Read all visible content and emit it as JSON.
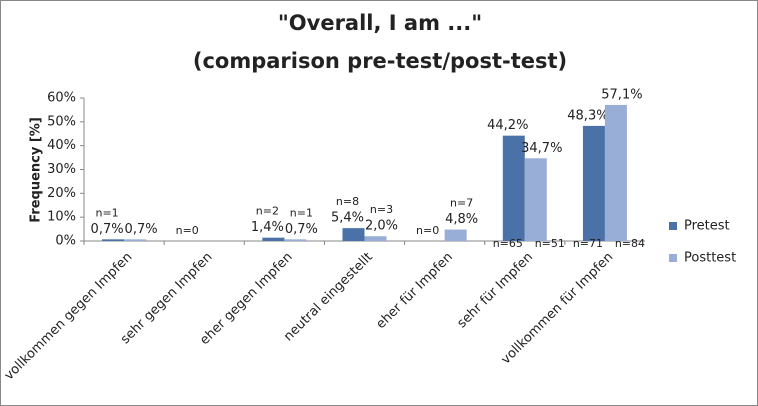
{
  "chart_data": {
    "type": "bar",
    "title": "\"Overall, I am ...\"",
    "subtitle": "(comparison pre-test/post-test)",
    "y_label": "Frequency [%]",
    "categories": [
      "vollkommen gegen Impfen",
      "sehr gegen Impfen",
      "eher gegen Impfen",
      "neutral eingestellt",
      "eher für Impfen",
      "sehr für Impfen",
      "vollkommen für Impfen"
    ],
    "series": [
      {
        "name": "Pretest",
        "color": "#4a72a8",
        "values": [
          0.7,
          0,
          1.4,
          5.4,
          0,
          44.2,
          48.3
        ],
        "value_labels": [
          "0,7%",
          null,
          "1,4%",
          "5,4%",
          null,
          "44,2%",
          "48,3%"
        ],
        "n_labels": [
          "n=1",
          "n=0",
          "n=2",
          "n=8",
          "n=0",
          "n=65",
          "n=71"
        ]
      },
      {
        "name": "Posttest",
        "color": "#98aed6",
        "values": [
          0.7,
          0,
          0.7,
          2.0,
          4.8,
          34.7,
          57.1
        ],
        "value_labels": [
          "0,7%",
          null,
          "0,7%",
          "2,0%",
          "4,8%",
          "34,7%",
          "57,1%"
        ],
        "n_labels": [
          null,
          null,
          "n=1",
          "n=3",
          "n=7",
          "n=51",
          "n=84"
        ]
      }
    ],
    "ylim": [
      0,
      60
    ],
    "yticks": [
      {
        "value": 0,
        "label": "0%"
      },
      {
        "value": 10,
        "label": "10%"
      },
      {
        "value": 20,
        "label": "20%"
      },
      {
        "value": 30,
        "label": "30%"
      },
      {
        "value": 40,
        "label": "40%"
      },
      {
        "value": 50,
        "label": "50%"
      },
      {
        "value": 60,
        "label": "60%"
      }
    ],
    "grid": false,
    "legend": "right"
  }
}
